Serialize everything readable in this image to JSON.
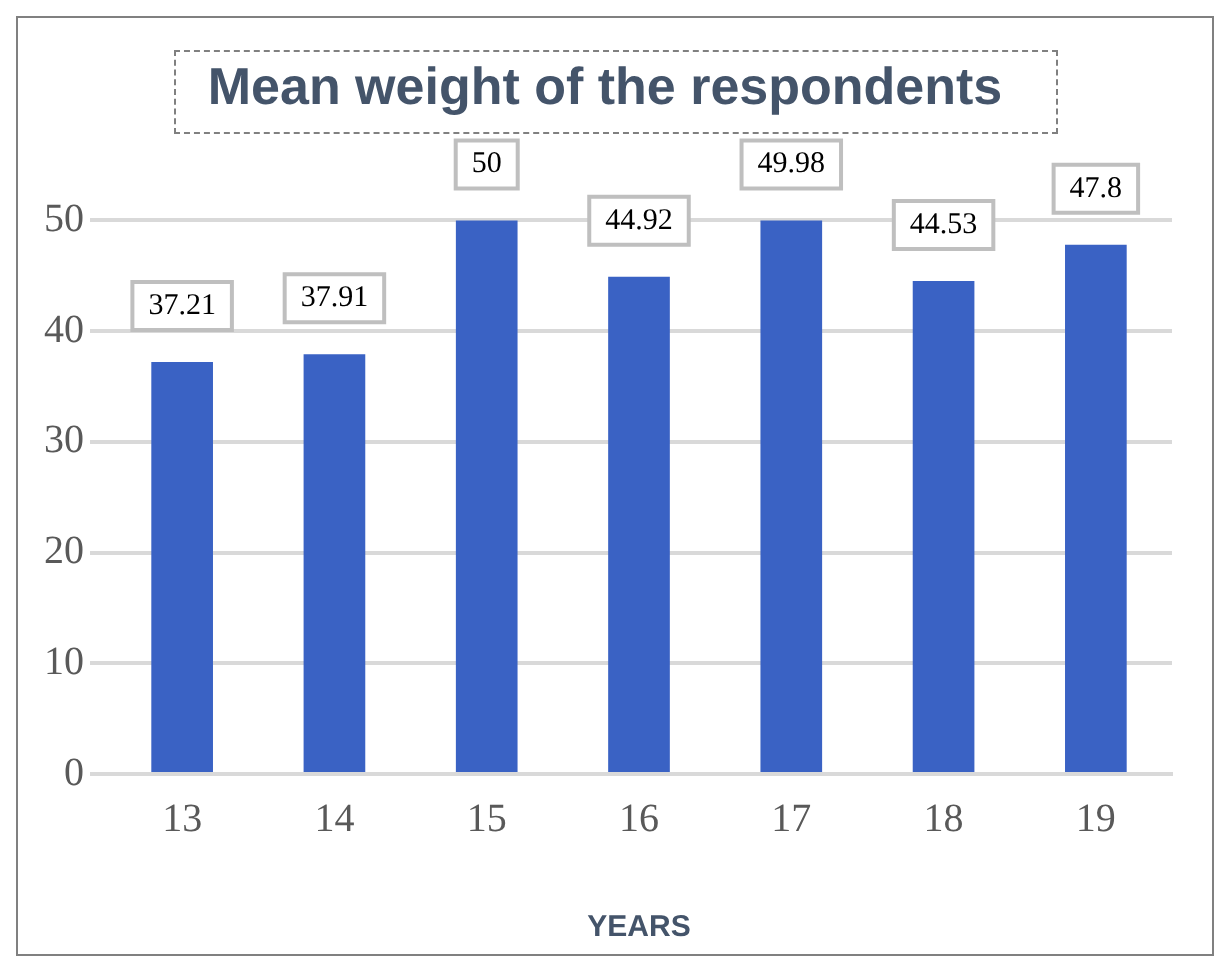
{
  "chart_data": {
    "type": "bar",
    "title": "Mean weight of the respondents",
    "xlabel": "YEARS",
    "categories": [
      "13",
      "14",
      "15",
      "16",
      "17",
      "18",
      "19"
    ],
    "values": [
      37.21,
      37.91,
      50,
      44.92,
      49.98,
      44.53,
      47.8
    ],
    "color": "#3a62c4",
    "ylim": [
      0,
      50
    ],
    "yticks": [
      0,
      10,
      20,
      30,
      40,
      50
    ],
    "grid": "y",
    "legend": false,
    "data_labels": true
  }
}
